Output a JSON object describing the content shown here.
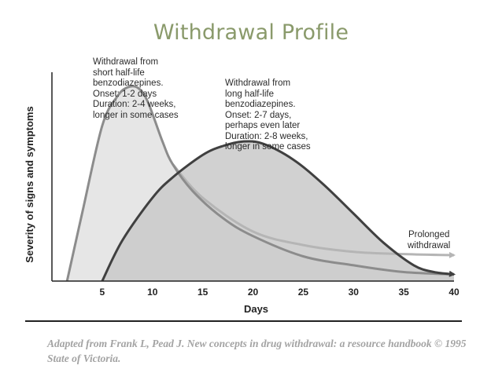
{
  "page": {
    "title": "Withdrawal Profile",
    "source": "Adapted from Frank L, Pead J. New concepts in drug withdrawal: a resource handbook © 1995 State of Victoria."
  },
  "annotations": {
    "short": [
      "Withdrawal from",
      "short half-life",
      "benzodiazepines.",
      "Onset: 1-2 days",
      "Duration: 2-4 weeks,",
      "longer in some cases"
    ],
    "long": [
      "Withdrawal from",
      "long half-life",
      "benzodiazepines.",
      "Onset: 2-7 days,",
      "perhaps even later",
      "Duration: 2-8 weeks,",
      "longer in some cases"
    ],
    "prolonged": [
      "Prolonged",
      "withdrawal"
    ]
  },
  "colors": {
    "short_line": "#8c8c8c",
    "short_fill": "#e6e6e6",
    "long_line": "#404040",
    "long_fill": "#c9c9c9",
    "prolonged_line": "#b5b5b5",
    "axis": "#222222",
    "title": "#8a9a6b"
  },
  "chart_data": {
    "type": "area",
    "title": "Withdrawal Profile",
    "xlabel": "Days",
    "ylabel": "Severity of signs and symptoms",
    "xlim": [
      0,
      40
    ],
    "ylim": [
      0,
      100
    ],
    "xticks": [
      5,
      10,
      15,
      20,
      25,
      30,
      35,
      40
    ],
    "y_tick_labels": false,
    "grid": false,
    "series": [
      {
        "name": "short half-life",
        "x": [
          1.5,
          3,
          5,
          6.5,
          7.5,
          8.5,
          9.5,
          11,
          12,
          14,
          17,
          20,
          25,
          30,
          35,
          40
        ],
        "y": [
          0,
          30,
          69,
          82,
          86,
          86,
          80,
          62,
          52,
          40,
          28,
          20,
          11,
          7,
          4,
          3
        ]
      },
      {
        "name": "long half-life",
        "x": [
          5,
          7,
          10,
          12,
          15,
          17,
          19,
          21,
          24,
          27,
          30,
          33,
          36,
          38,
          40
        ],
        "y": [
          0,
          18,
          37,
          46,
          56,
          60,
          62,
          61,
          54,
          43,
          30,
          17,
          7,
          4,
          3
        ]
      },
      {
        "name": "Prolonged withdrawal",
        "x": [
          12,
          15,
          20,
          25,
          30,
          35,
          40
        ],
        "y": [
          52,
          37,
          22,
          16,
          13,
          12,
          11.5
        ]
      }
    ]
  }
}
